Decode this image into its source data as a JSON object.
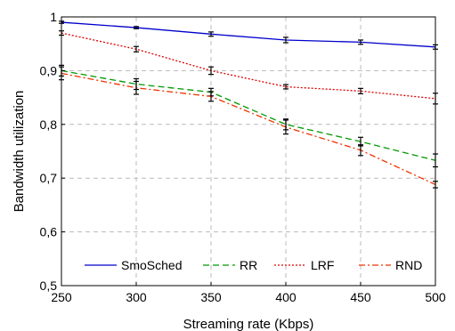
{
  "chart_data": {
    "type": "line",
    "xlabel": "Streaming rate (Kbps)",
    "ylabel": "Bandwidth utilization",
    "x": [
      250,
      300,
      350,
      400,
      450,
      500
    ],
    "x_ticks": [
      "250",
      "300",
      "350",
      "400",
      "450",
      "500"
    ],
    "xlim": [
      250,
      500
    ],
    "ylim": [
      0.5,
      1.0
    ],
    "y_ticks": [
      {
        "value": 0.5,
        "label": "0,5"
      },
      {
        "value": 0.6,
        "label": "0,6"
      },
      {
        "value": 0.7,
        "label": "0,7"
      },
      {
        "value": 0.8,
        "label": "0,8"
      },
      {
        "value": 0.9,
        "label": "0,9"
      },
      {
        "value": 1.0,
        "label": "1"
      }
    ],
    "grid": true,
    "legend_position": "bottom",
    "series": [
      {
        "name": "SmoSched",
        "color": "#0000cc",
        "dash": "solid",
        "values": [
          0.99,
          0.98,
          0.968,
          0.957,
          0.953,
          0.944
        ],
        "errors": [
          0.002,
          0.002,
          0.004,
          0.005,
          0.004,
          0.004
        ]
      },
      {
        "name": "RR",
        "color": "#009900",
        "dash": "dashed",
        "values": [
          0.9,
          0.875,
          0.86,
          0.8,
          0.768,
          0.733
        ],
        "errors": [
          0.01,
          0.01,
          0.007,
          0.01,
          0.008,
          0.012
        ]
      },
      {
        "name": "LRF",
        "color": "#dd0000",
        "dash": "dotted",
        "values": [
          0.97,
          0.94,
          0.9,
          0.87,
          0.862,
          0.848
        ],
        "errors": [
          0.004,
          0.005,
          0.007,
          0.004,
          0.005,
          0.01
        ]
      },
      {
        "name": "RND",
        "color": "#ee3300",
        "dash": "dashdot",
        "values": [
          0.895,
          0.868,
          0.852,
          0.795,
          0.752,
          0.688
        ],
        "errors": [
          0.012,
          0.012,
          0.009,
          0.013,
          0.01,
          0.006
        ]
      }
    ]
  }
}
